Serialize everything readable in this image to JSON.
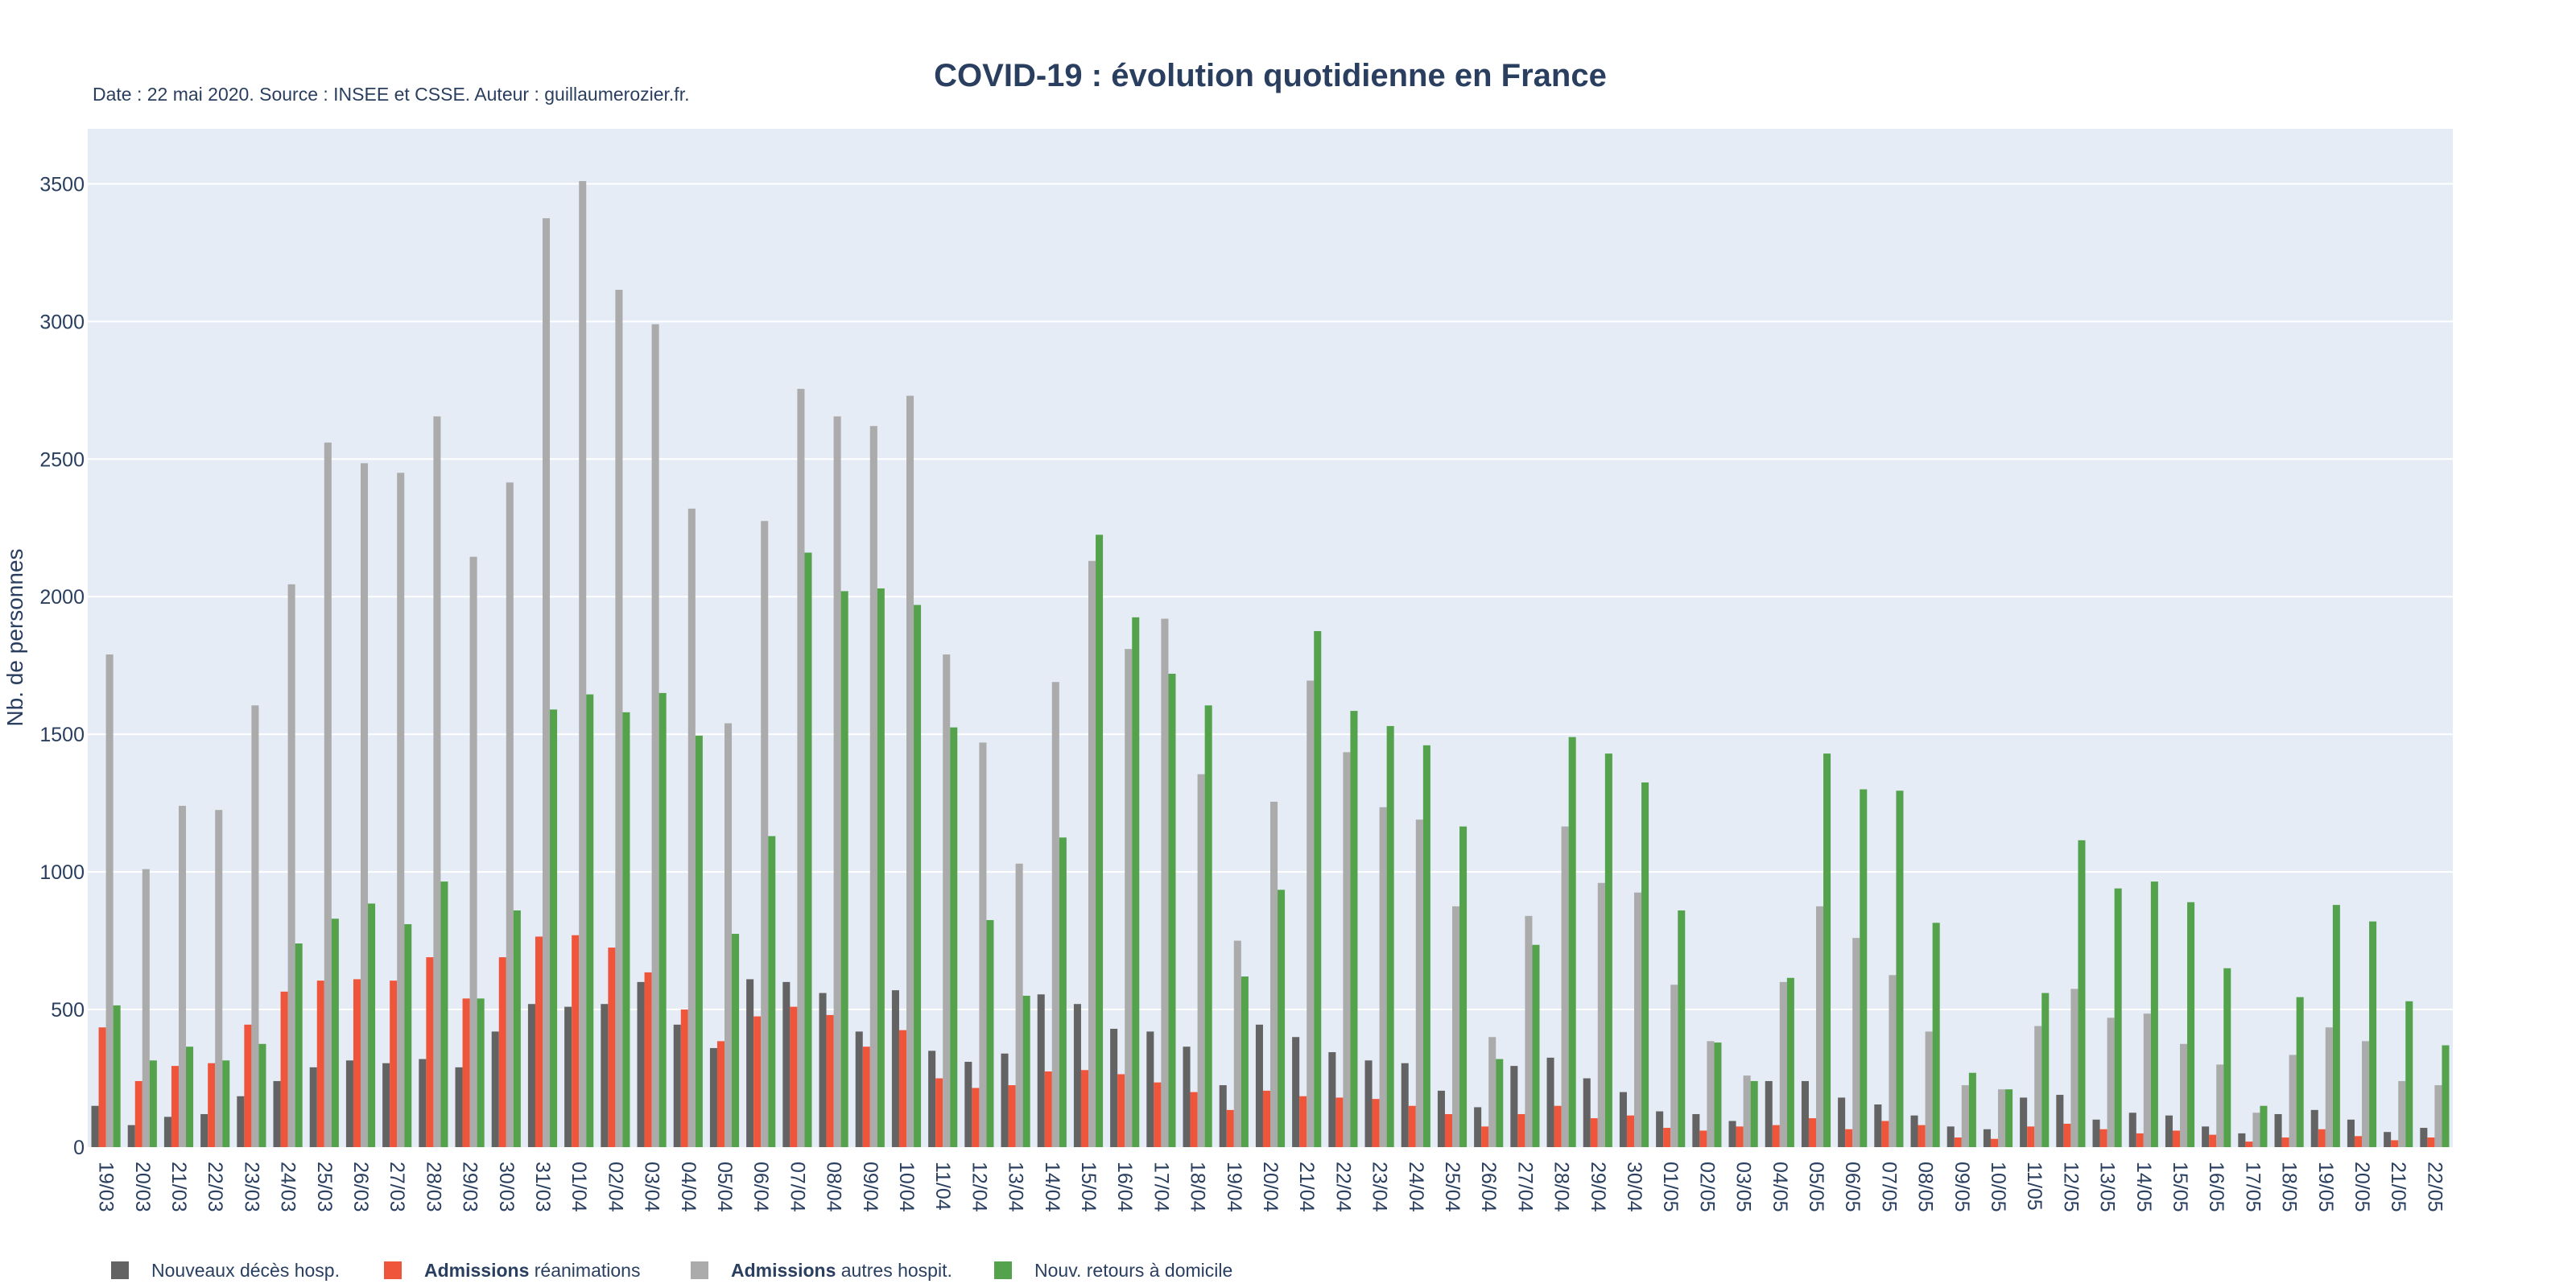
{
  "chart_data": {
    "type": "bar",
    "title": "COVID-19 : évolution quotidienne en France",
    "subtitle": "Date : 22 mai 2020. Source : INSEE et CSSE. Auteur : guillaumerozier.fr.",
    "ylabel": "Nb. de personnes",
    "xlabel": "",
    "ylim": [
      0,
      3700
    ],
    "yticks": [
      0,
      500,
      1000,
      1500,
      2000,
      2500,
      3000,
      3500
    ],
    "grid": true,
    "legend_position": "bottom-left",
    "categories": [
      "19/03",
      "20/03",
      "21/03",
      "22/03",
      "23/03",
      "24/03",
      "25/03",
      "26/03",
      "27/03",
      "28/03",
      "29/03",
      "30/03",
      "31/03",
      "01/04",
      "02/04",
      "03/04",
      "04/04",
      "05/04",
      "06/04",
      "07/04",
      "08/04",
      "09/04",
      "10/04",
      "11/04",
      "12/04",
      "13/04",
      "14/04",
      "15/04",
      "16/04",
      "17/04",
      "18/04",
      "19/04",
      "20/04",
      "21/04",
      "22/04",
      "23/04",
      "24/04",
      "25/04",
      "26/04",
      "27/04",
      "28/04",
      "29/04",
      "30/04",
      "01/05",
      "02/05",
      "03/05",
      "04/05",
      "05/05",
      "06/05",
      "07/05",
      "08/05",
      "09/05",
      "10/05",
      "11/05",
      "12/05",
      "13/05",
      "14/05",
      "15/05",
      "16/05",
      "17/05",
      "18/05",
      "19/05",
      "20/05",
      "21/05",
      "22/05"
    ],
    "series": [
      {
        "name": "Nouveaux décès hosp.",
        "color": "#636363",
        "values": [
          150,
          80,
          110,
          120,
          185,
          240,
          290,
          315,
          305,
          320,
          290,
          420,
          520,
          510,
          520,
          600,
          445,
          360,
          610,
          600,
          560,
          420,
          570,
          350,
          310,
          340,
          555,
          520,
          430,
          420,
          365,
          225,
          445,
          400,
          345,
          315,
          305,
          205,
          145,
          295,
          325,
          250,
          200,
          130,
          120,
          95,
          240,
          240,
          180,
          155,
          115,
          75,
          65,
          180,
          190,
          100,
          125,
          115,
          75,
          50,
          120,
          135,
          100,
          55,
          70
        ]
      },
      {
        "name": "Admissions réanimations",
        "name_bold": "Admissions",
        "name_rest": " réanimations",
        "color": "#ef553b",
        "values": [
          435,
          240,
          295,
          305,
          445,
          565,
          605,
          610,
          605,
          690,
          540,
          690,
          765,
          770,
          725,
          635,
          500,
          385,
          475,
          510,
          480,
          365,
          425,
          250,
          215,
          225,
          275,
          280,
          265,
          235,
          200,
          135,
          205,
          185,
          180,
          175,
          150,
          120,
          75,
          120,
          150,
          105,
          115,
          70,
          60,
          75,
          80,
          105,
          65,
          95,
          80,
          35,
          30,
          75,
          85,
          65,
          50,
          60,
          45,
          20,
          35,
          65,
          40,
          25,
          35
        ]
      },
      {
        "name": "Admissions autres hospit.",
        "name_bold": "Admissions",
        "name_rest": " autres hospit.",
        "color": "#ababab",
        "values": [
          1790,
          1010,
          1240,
          1225,
          1605,
          2045,
          2560,
          2485,
          2450,
          2655,
          2145,
          2415,
          3375,
          3510,
          3115,
          2990,
          2320,
          1540,
          2275,
          2755,
          2655,
          2620,
          2730,
          1790,
          1470,
          1030,
          1690,
          2130,
          1810,
          1920,
          1355,
          750,
          1255,
          1695,
          1435,
          1235,
          1190,
          875,
          400,
          840,
          1165,
          960,
          925,
          590,
          385,
          260,
          600,
          875,
          760,
          625,
          420,
          225,
          210,
          440,
          575,
          470,
          485,
          375,
          300,
          125,
          335,
          435,
          385,
          240,
          225
        ]
      },
      {
        "name": "Nouv. retours à domicile",
        "color": "#54a24b",
        "values": [
          515,
          315,
          365,
          315,
          375,
          740,
          830,
          885,
          810,
          965,
          540,
          860,
          1590,
          1645,
          1580,
          1650,
          1495,
          775,
          1130,
          2160,
          2020,
          2030,
          1970,
          1525,
          825,
          550,
          1125,
          2225,
          1925,
          1720,
          1605,
          620,
          935,
          1875,
          1585,
          1530,
          1460,
          1165,
          320,
          735,
          1490,
          1430,
          1325,
          860,
          380,
          240,
          615,
          1430,
          1300,
          1295,
          815,
          270,
          210,
          560,
          1115,
          940,
          965,
          890,
          650,
          150,
          545,
          880,
          820,
          530,
          370
        ]
      }
    ]
  }
}
